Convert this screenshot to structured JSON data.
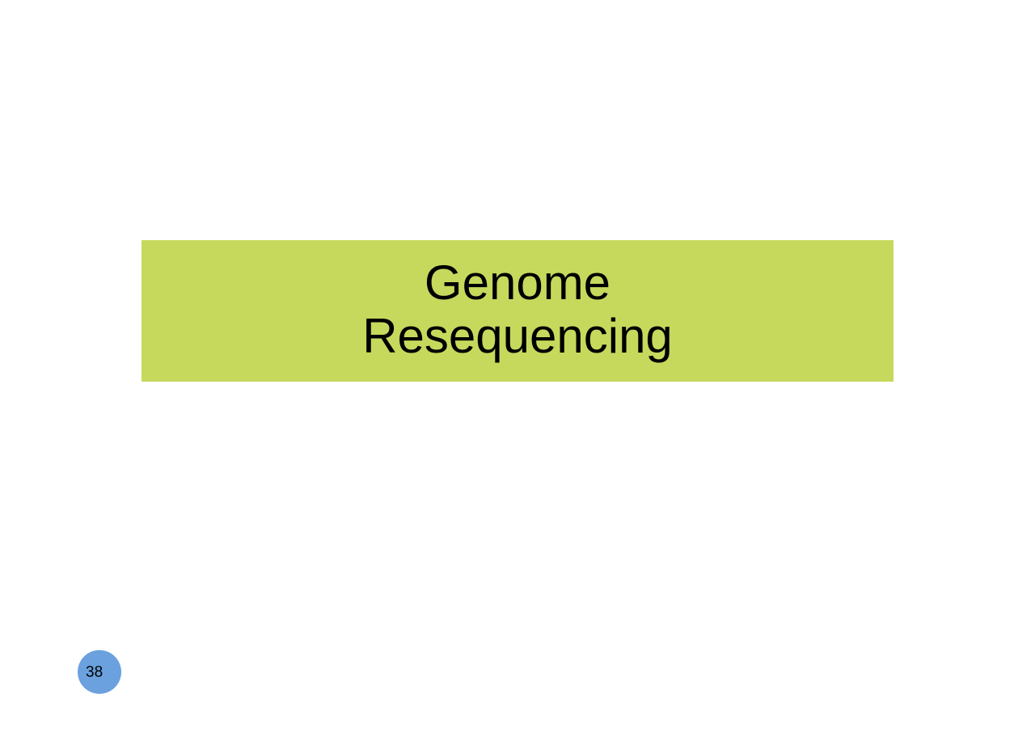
{
  "slide": {
    "title_lines": [
      "Genome",
      "Resequencing"
    ],
    "banner_color": "#c6d95c",
    "page_number": "38",
    "page_badge_color": "#6aa1de"
  }
}
